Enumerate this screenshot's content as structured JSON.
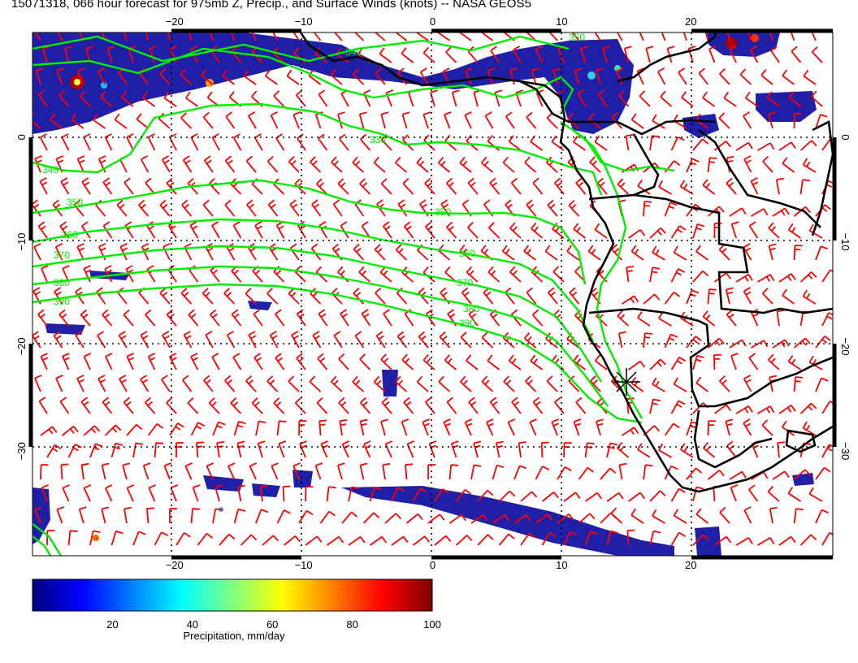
{
  "title": "15071318, 066 hour forecast for 975mb Z, Precip., and Surface Winds (knots) -- NASA GEOS5",
  "map": {
    "lon_range": [
      -31,
      31
    ],
    "lat_range": [
      -40,
      10
    ],
    "lon_ticks": [
      -20,
      -10,
      0,
      10,
      20
    ],
    "lat_ticks": [
      0,
      -10,
      -20,
      -30
    ],
    "lon_labels": [
      "−20",
      "−10",
      "0",
      "10",
      "20"
    ],
    "lat_labels": [
      "0",
      "−10",
      "−20",
      "−30"
    ],
    "colors": {
      "wind_barbs": "#ff0000",
      "height_contours": "#00ee00",
      "coastlines": "#000000",
      "precip_low": "#1a1aa0",
      "precip_high": "#7a0000"
    },
    "contour_labels": [
      "330",
      "340",
      "350",
      "360",
      "370",
      "380",
      "390"
    ],
    "marker": {
      "lon": 15,
      "lat": -23.5,
      "icon": "asterisk-marker-icon"
    }
  },
  "colorbar": {
    "label": "Precipitation, mm/day",
    "ticks": [
      "20",
      "40",
      "60",
      "80",
      "100"
    ],
    "tick_values": [
      20,
      40,
      60,
      80,
      100
    ],
    "range": [
      0,
      100
    ],
    "colors": [
      "#00007f",
      "#0000ff",
      "#0080ff",
      "#00ffff",
      "#80ff80",
      "#ffff00",
      "#ff8000",
      "#ff0000",
      "#7f0000"
    ]
  }
}
